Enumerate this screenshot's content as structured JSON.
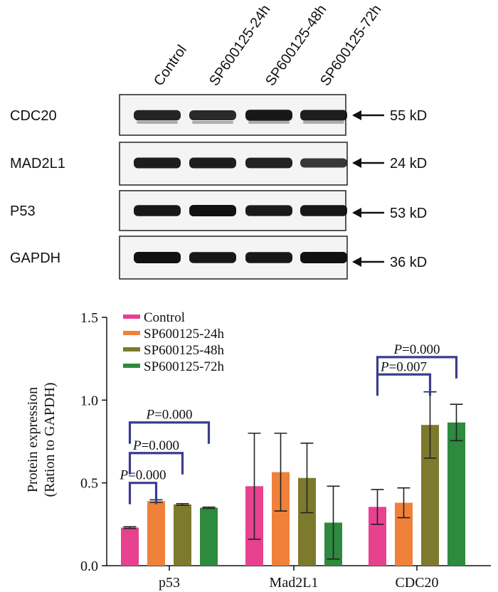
{
  "blot": {
    "lanes": [
      "Control",
      "SP600125-24h",
      "SP600125-48h",
      "SP600125-72h"
    ],
    "rows": [
      {
        "protein": "CDC20",
        "size": "55 kD",
        "intensity": [
          0.85,
          0.8,
          0.95,
          0.9
        ]
      },
      {
        "protein": "MAD2L1",
        "size": "24 kD",
        "intensity": [
          0.9,
          0.9,
          0.88,
          0.7
        ]
      },
      {
        "protein": "P53",
        "size": "53 kD",
        "intensity": [
          0.95,
          1.0,
          0.92,
          0.95
        ]
      },
      {
        "protein": "GAPDH",
        "size": "36 kD",
        "intensity": [
          1.0,
          0.95,
          0.95,
          1.0
        ]
      }
    ]
  },
  "chart_data": {
    "type": "bar",
    "ylabel": "Protein expression",
    "ylabel2": "(Ration to GAPDH)",
    "ylim": [
      0,
      1.5
    ],
    "yticks": [
      "0.0",
      "0.5",
      "1.0",
      "1.5"
    ],
    "categories": [
      "p53",
      "Mad2L1",
      "CDC20"
    ],
    "series": [
      {
        "name": "Control",
        "color": "#e8418f",
        "values": [
          0.23,
          0.48,
          0.355
        ],
        "errors": [
          0.005,
          0.32,
          0.105
        ]
      },
      {
        "name": "SP600125-24h",
        "color": "#f0813a",
        "values": [
          0.39,
          0.565,
          0.38
        ],
        "errors": [
          0.008,
          0.235,
          0.09
        ]
      },
      {
        "name": "SP600125-48h",
        "color": "#7d7a2e",
        "values": [
          0.37,
          0.53,
          0.85
        ],
        "errors": [
          0.005,
          0.21,
          0.2
        ]
      },
      {
        "name": "SP600125-72h",
        "color": "#2d8a3e",
        "values": [
          0.35,
          0.26,
          0.865
        ],
        "errors": [
          0.004,
          0.22,
          0.11
        ]
      }
    ],
    "annotations": [
      {
        "label": "P",
        "text": "=0.000",
        "category": 0,
        "from": 0,
        "to": 1,
        "level": 0.5
      },
      {
        "label": "P",
        "text": "=0.000",
        "category": 0,
        "from": 0,
        "to": 2,
        "level": 0.68
      },
      {
        "label": "P",
        "text": "=0.000",
        "category": 0,
        "from": 0,
        "to": 3,
        "level": 0.865
      },
      {
        "label": "P",
        "text": "=0.007",
        "category": 2,
        "from": 0,
        "to": 2,
        "level": 1.155
      },
      {
        "label": "P",
        "text": "=0.000",
        "category": 2,
        "from": 0,
        "to": 3,
        "level": 1.26
      }
    ]
  }
}
